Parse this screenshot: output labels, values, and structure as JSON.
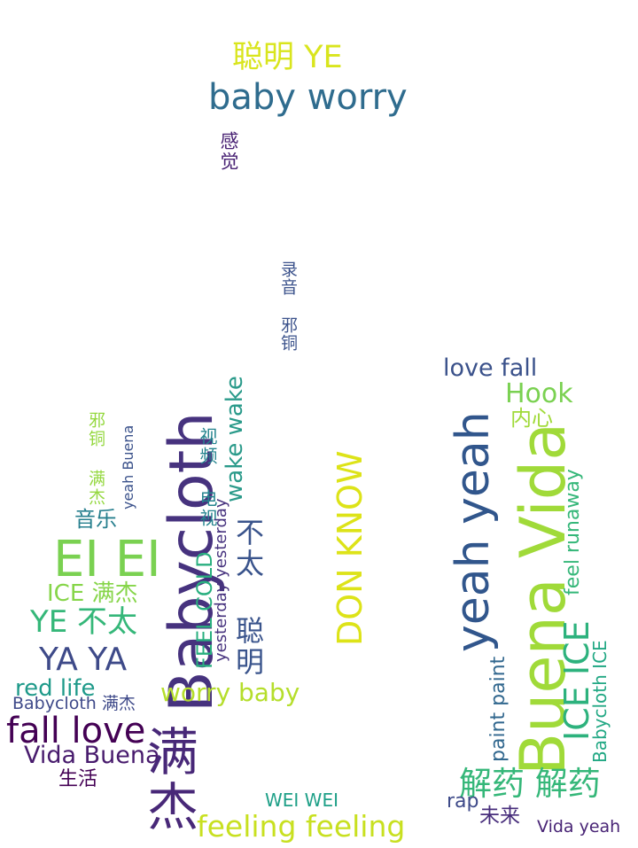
{
  "words": [
    {
      "id": "w1",
      "text": "聪明 YE",
      "color": "#d9e51d"
    },
    {
      "id": "w2",
      "text": "baby worry",
      "color": "#2f6c8e"
    },
    {
      "id": "w3",
      "text": "感觉",
      "color": "#482173"
    },
    {
      "id": "w4",
      "text": "录音 邪铜",
      "color": "#3b528b"
    },
    {
      "id": "w5",
      "text": "love fall",
      "color": "#3b528b"
    },
    {
      "id": "w6",
      "text": "Hook",
      "color": "#7ad151"
    },
    {
      "id": "w7",
      "text": "内心",
      "color": "#a0da39"
    },
    {
      "id": "w8",
      "text": "yeah yeah",
      "color": "#31568c"
    },
    {
      "id": "w9",
      "text": "Buena Vida",
      "color": "#a0da39"
    },
    {
      "id": "w10",
      "text": "feel runaway",
      "color": "#35b779"
    },
    {
      "id": "w11",
      "text": "ICE ICE",
      "color": "#2db27d"
    },
    {
      "id": "w12",
      "text": "Babycloth ICE",
      "color": "#22a884"
    },
    {
      "id": "w13",
      "text": "paint paint",
      "color": "#31678e"
    },
    {
      "id": "w14",
      "text": "DON KNOW",
      "color": "#dde318"
    },
    {
      "id": "w15",
      "text": "Babycloth",
      "color": "#46327e"
    },
    {
      "id": "w16",
      "text": "wake wake",
      "color": "#2a9a8a"
    },
    {
      "id": "w17",
      "text": "视频 电视",
      "color": "#24848e"
    },
    {
      "id": "w18",
      "text": "不太 聪明",
      "color": "#3a548c"
    },
    {
      "id": "w19",
      "text": "yesterday yesterday",
      "color": "#46327e"
    },
    {
      "id": "w20",
      "text": "FEEL COLD",
      "color": "#29af7f"
    },
    {
      "id": "w21",
      "text": "yeah Buena",
      "color": "#3b528b"
    },
    {
      "id": "w22",
      "text": "邪铜 满杰",
      "color": "#95d840"
    },
    {
      "id": "w23",
      "text": "音乐",
      "color": "#277f8e"
    },
    {
      "id": "w24",
      "text": "EI EI",
      "color": "#7ad151"
    },
    {
      "id": "w25",
      "text": "ICE 满杰",
      "color": "#86d549"
    },
    {
      "id": "w26",
      "text": "YE 不太",
      "color": "#35b779"
    },
    {
      "id": "w27",
      "text": "YA YA",
      "color": "#3e4a89"
    },
    {
      "id": "w28",
      "text": "red life",
      "color": "#1f9a8a"
    },
    {
      "id": "w29",
      "text": "worry baby",
      "color": "#b5de2b"
    },
    {
      "id": "w30",
      "text": "Babycloth 满杰",
      "color": "#3e4989"
    },
    {
      "id": "w31",
      "text": "fall love",
      "color": "#440154"
    },
    {
      "id": "w32",
      "text": "Vida Buena",
      "color": "#481b6d"
    },
    {
      "id": "w33",
      "text": "生活",
      "color": "#440154"
    },
    {
      "id": "w34",
      "text": "满杰",
      "color": "#482878"
    },
    {
      "id": "w35",
      "text": "WEI WEI",
      "color": "#1fa088"
    },
    {
      "id": "w36",
      "text": "feeling feeling",
      "color": "#c8e020"
    },
    {
      "id": "w37",
      "text": "解药 解药",
      "color": "#35b779"
    },
    {
      "id": "w38",
      "text": "rap",
      "color": "#3e4a89"
    },
    {
      "id": "w39",
      "text": "未来",
      "color": "#472d7b"
    },
    {
      "id": "w40",
      "text": "Vida yeah",
      "color": "#482475"
    }
  ]
}
